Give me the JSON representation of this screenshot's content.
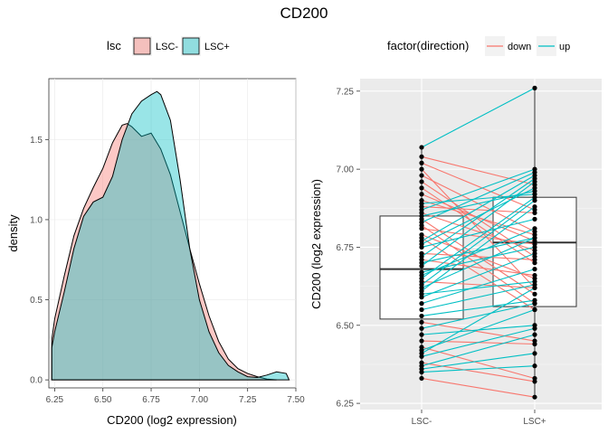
{
  "title": "CD200",
  "chart_data": [
    {
      "type": "area",
      "subtype": "density",
      "xlabel": "CD200 (log2 expression)",
      "ylabel": "density",
      "xlim": [
        6.22,
        7.5
      ],
      "ylim": [
        -0.05,
        1.88
      ],
      "xticks": [
        6.25,
        6.5,
        6.75,
        7.0,
        7.25,
        7.5
      ],
      "xtick_labels": [
        "6.25",
        "6.50",
        "6.75",
        "7.00",
        "7.25",
        "7.50"
      ],
      "yticks": [
        0.0,
        0.5,
        1.0,
        1.5
      ],
      "ytick_labels": [
        "0.0",
        "0.5",
        "1.0",
        "1.5"
      ],
      "grid": true,
      "legend": {
        "title": "lsc",
        "position": "top"
      },
      "series": [
        {
          "name": "LSC-",
          "color": "#F8766D",
          "x": [
            6.235,
            6.25,
            6.3,
            6.35,
            6.4,
            6.45,
            6.5,
            6.55,
            6.6,
            6.625,
            6.65,
            6.7,
            6.75,
            6.8,
            6.85,
            6.9,
            6.95,
            7.0,
            7.05,
            7.1,
            7.15,
            7.2,
            7.25,
            7.3,
            7.35,
            7.4
          ],
          "y": [
            0.25,
            0.38,
            0.65,
            0.9,
            1.07,
            1.2,
            1.32,
            1.48,
            1.59,
            1.6,
            1.58,
            1.52,
            1.54,
            1.44,
            1.28,
            1.05,
            0.82,
            0.6,
            0.4,
            0.24,
            0.13,
            0.07,
            0.04,
            0.02,
            0.005,
            0.0
          ]
        },
        {
          "name": "LSC+",
          "color": "#00BFC4",
          "x": [
            6.235,
            6.25,
            6.3,
            6.35,
            6.4,
            6.45,
            6.5,
            6.55,
            6.6,
            6.65,
            6.7,
            6.75,
            6.78,
            6.8,
            6.85,
            6.9,
            6.95,
            7.0,
            7.05,
            7.1,
            7.15,
            7.2,
            7.25,
            7.3,
            7.35,
            7.4,
            7.45,
            7.465
          ],
          "y": [
            0.2,
            0.3,
            0.55,
            0.82,
            1.02,
            1.11,
            1.14,
            1.27,
            1.5,
            1.66,
            1.74,
            1.78,
            1.8,
            1.78,
            1.62,
            1.25,
            0.82,
            0.5,
            0.3,
            0.17,
            0.09,
            0.05,
            0.02,
            0.015,
            0.03,
            0.05,
            0.04,
            0.0
          ]
        }
      ]
    },
    {
      "type": "box",
      "overlay": "paired-lines-and-points",
      "xlabel": "",
      "ylabel": "CD200 (log2 expression)",
      "categories": [
        "LSC-",
        "LSC+"
      ],
      "ylim": [
        6.23,
        7.29
      ],
      "yticks": [
        6.25,
        6.5,
        6.75,
        7.0,
        7.25
      ],
      "ytick_labels": [
        "6.25",
        "6.50",
        "6.75",
        "7.00",
        "7.25"
      ],
      "grid": true,
      "legend": {
        "title": "factor(direction)",
        "position": "top"
      },
      "line_colors": {
        "down": "#F8766D",
        "up": "#00BFC4"
      },
      "direction_labels": [
        "down",
        "up"
      ],
      "boxes": [
        {
          "category": "LSC-",
          "q1": 6.52,
          "median": 6.68,
          "q3": 6.85,
          "whisker_low": 6.33,
          "whisker_high": 7.07
        },
        {
          "category": "LSC+",
          "q1": 6.56,
          "median": 6.765,
          "q3": 6.91,
          "whisker_low": 6.27,
          "whisker_high": 7.26
        }
      ],
      "pairs": [
        [
          7.07,
          7.26
        ],
        [
          7.04,
          6.95
        ],
        [
          7.02,
          6.87
        ],
        [
          7.0,
          6.62
        ],
        [
          6.98,
          6.8
        ],
        [
          6.96,
          6.72
        ],
        [
          6.94,
          6.7
        ],
        [
          6.92,
          6.77
        ],
        [
          6.9,
          6.79
        ],
        [
          6.89,
          6.92
        ],
        [
          6.88,
          6.86
        ],
        [
          6.87,
          7.0
        ],
        [
          6.86,
          6.74
        ],
        [
          6.85,
          6.93
        ],
        [
          6.84,
          6.6
        ],
        [
          6.83,
          6.99
        ],
        [
          6.82,
          6.57
        ],
        [
          6.81,
          6.76
        ],
        [
          6.79,
          6.65
        ],
        [
          6.78,
          6.55
        ],
        [
          6.77,
          6.98
        ],
        [
          6.76,
          6.94
        ],
        [
          6.75,
          6.84
        ],
        [
          6.73,
          6.71
        ],
        [
          6.72,
          6.97
        ],
        [
          6.71,
          6.66
        ],
        [
          6.7,
          6.78
        ],
        [
          6.69,
          6.96
        ],
        [
          6.67,
          6.75
        ],
        [
          6.66,
          6.81
        ],
        [
          6.65,
          6.91
        ],
        [
          6.64,
          6.62
        ],
        [
          6.63,
          6.9
        ],
        [
          6.62,
          6.78
        ],
        [
          6.61,
          6.88
        ],
        [
          6.6,
          6.64
        ],
        [
          6.59,
          6.73
        ],
        [
          6.57,
          6.68
        ],
        [
          6.55,
          6.63
        ],
        [
          6.53,
          6.58
        ],
        [
          6.51,
          6.45
        ],
        [
          6.49,
          6.57
        ],
        [
          6.47,
          6.5
        ],
        [
          6.45,
          6.44
        ],
        [
          6.43,
          6.33
        ],
        [
          6.42,
          6.55
        ],
        [
          6.41,
          6.62
        ],
        [
          6.4,
          6.49
        ],
        [
          6.38,
          6.32
        ],
        [
          6.37,
          6.47
        ],
        [
          6.36,
          6.41
        ],
        [
          6.35,
          6.37
        ],
        [
          6.33,
          6.27
        ]
      ]
    }
  ]
}
